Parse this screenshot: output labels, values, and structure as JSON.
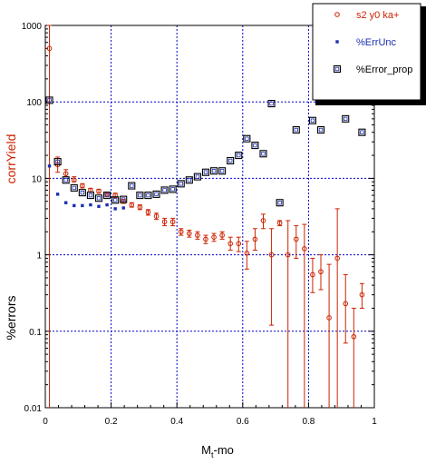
{
  "chart_data": {
    "type": "scatter",
    "xlabel": "M",
    "xlabel_sub": "t",
    "xlabel_suffix": "-mo",
    "ylabel_top": "corrYield",
    "ylabel_bottom": "%errors",
    "xlim": [
      0,
      1
    ],
    "ylim": [
      0.01,
      1000
    ],
    "y_scale": "log",
    "grid": true,
    "legend_position": "top-right",
    "x_ticks": [
      {
        "value": 0,
        "label": "0"
      },
      {
        "value": 0.2,
        "label": "0.2"
      },
      {
        "value": 0.4,
        "label": "0.4"
      },
      {
        "value": 0.6,
        "label": "0.6"
      },
      {
        "value": 0.8,
        "label": "0.8"
      },
      {
        "value": 1,
        "label": "1"
      }
    ],
    "y_ticks": [
      {
        "value": 0.01,
        "label": "0.01"
      },
      {
        "value": 0.1,
        "label": "0.1"
      },
      {
        "value": 1,
        "label": "1"
      },
      {
        "value": 10,
        "label": "10"
      },
      {
        "value": 100,
        "label": "100"
      },
      {
        "value": 1000,
        "label": "1000"
      }
    ],
    "series": [
      {
        "name": "s2 y0 ka+",
        "marker": "open-circle",
        "color": "#cc2200",
        "points": [
          {
            "x": 0.0125,
            "y": 500,
            "lo": 0.01,
            "hi": 1000
          },
          {
            "x": 0.0375,
            "y": 15,
            "lo": 12,
            "hi": 19
          },
          {
            "x": 0.0625,
            "y": 11.5,
            "lo": 10.5,
            "hi": 13
          },
          {
            "x": 0.0875,
            "y": 9.5,
            "lo": 9,
            "hi": 10.5
          },
          {
            "x": 0.1125,
            "y": 8,
            "lo": 7.5,
            "hi": 8.5
          },
          {
            "x": 0.1375,
            "y": 7,
            "lo": 6.6,
            "hi": 7.4
          },
          {
            "x": 0.1625,
            "y": 6.8,
            "lo": 6.4,
            "hi": 7.2
          },
          {
            "x": 0.1875,
            "y": 6.2,
            "lo": 5.8,
            "hi": 6.6
          },
          {
            "x": 0.2125,
            "y": 6,
            "lo": 5.6,
            "hi": 6.4
          },
          {
            "x": 0.2375,
            "y": 5,
            "lo": 4.7,
            "hi": 5.3
          },
          {
            "x": 0.2625,
            "y": 4.5,
            "lo": 4.2,
            "hi": 4.8
          },
          {
            "x": 0.2875,
            "y": 4.2,
            "lo": 3.9,
            "hi": 4.5
          },
          {
            "x": 0.3125,
            "y": 3.6,
            "lo": 3.3,
            "hi": 3.9
          },
          {
            "x": 0.3375,
            "y": 3.2,
            "lo": 2.9,
            "hi": 3.5
          },
          {
            "x": 0.3625,
            "y": 2.7,
            "lo": 2.4,
            "hi": 3.0
          },
          {
            "x": 0.3875,
            "y": 2.7,
            "lo": 2.4,
            "hi": 3.0
          },
          {
            "x": 0.4125,
            "y": 2,
            "lo": 1.8,
            "hi": 2.2
          },
          {
            "x": 0.4375,
            "y": 1.9,
            "lo": 1.7,
            "hi": 2.1
          },
          {
            "x": 0.4625,
            "y": 1.8,
            "lo": 1.6,
            "hi": 2.0
          },
          {
            "x": 0.4875,
            "y": 1.6,
            "lo": 1.4,
            "hi": 1.8
          },
          {
            "x": 0.5125,
            "y": 1.7,
            "lo": 1.5,
            "hi": 1.9
          },
          {
            "x": 0.5375,
            "y": 1.8,
            "lo": 1.6,
            "hi": 2.0
          },
          {
            "x": 0.5625,
            "y": 1.4,
            "lo": 1.15,
            "hi": 1.7
          },
          {
            "x": 0.5875,
            "y": 1.4,
            "lo": 1.1,
            "hi": 1.7
          },
          {
            "x": 0.6125,
            "y": 1.05,
            "lo": 0.65,
            "hi": 1.5
          },
          {
            "x": 0.6375,
            "y": 1.6,
            "lo": 1.15,
            "hi": 2.2
          },
          {
            "x": 0.6625,
            "y": 2.8,
            "lo": 2.2,
            "hi": 3.4
          },
          {
            "x": 0.6875,
            "y": 1.0,
            "lo": 0.12,
            "hi": 2.2
          },
          {
            "x": 0.7125,
            "y": 2.6,
            "lo": 2.4,
            "hi": 2.8
          },
          {
            "x": 0.7375,
            "y": 1.0,
            "lo": 0.01,
            "hi": 2.8
          },
          {
            "x": 0.7625,
            "y": 1.6,
            "lo": 0.9,
            "hi": 2.4
          },
          {
            "x": 0.7875,
            "y": 1.2,
            "lo": 0.01,
            "hi": 2.5
          },
          {
            "x": 0.8125,
            "y": 0.55,
            "lo": 0.32,
            "hi": 0.9
          },
          {
            "x": 0.8375,
            "y": 0.6,
            "lo": 0.35,
            "hi": 1.0
          },
          {
            "x": 0.8625,
            "y": 0.15,
            "lo": 0.01,
            "hi": 0.75
          },
          {
            "x": 0.8875,
            "y": 0.9,
            "lo": 0.01,
            "hi": 4
          },
          {
            "x": 0.9125,
            "y": 0.23,
            "lo": 0.07,
            "hi": 0.55
          },
          {
            "x": 0.9375,
            "y": 0.085,
            "lo": 0.01,
            "hi": 0.2
          },
          {
            "x": 0.9625,
            "y": 0.3,
            "lo": 0.2,
            "hi": 0.42
          }
        ]
      },
      {
        "name": "%ErrUnc",
        "marker": "filled-square",
        "color": "#1a2eb0",
        "points": [
          {
            "x": 0.0125,
            "y": 14.5
          },
          {
            "x": 0.0375,
            "y": 6.2
          },
          {
            "x": 0.0625,
            "y": 4.8
          },
          {
            "x": 0.0875,
            "y": 4.4
          },
          {
            "x": 0.1125,
            "y": 4.4
          },
          {
            "x": 0.1375,
            "y": 4.5
          },
          {
            "x": 0.1625,
            "y": 4.3
          },
          {
            "x": 0.1875,
            "y": 4.5
          },
          {
            "x": 0.2125,
            "y": 4.0
          },
          {
            "x": 0.2375,
            "y": 4.1
          }
        ]
      },
      {
        "name": "%Error_prop",
        "marker": "open-square",
        "color": "#000000",
        "points": [
          {
            "x": 0.0125,
            "y": 105
          },
          {
            "x": 0.0375,
            "y": 16.5
          },
          {
            "x": 0.0625,
            "y": 9.5
          },
          {
            "x": 0.0875,
            "y": 7.5
          },
          {
            "x": 0.1125,
            "y": 6.5
          },
          {
            "x": 0.1375,
            "y": 6.0
          },
          {
            "x": 0.1625,
            "y": 5.5
          },
          {
            "x": 0.1875,
            "y": 6.0
          },
          {
            "x": 0.2125,
            "y": 5.2
          },
          {
            "x": 0.2375,
            "y": 5.3
          },
          {
            "x": 0.2625,
            "y": 8.0
          },
          {
            "x": 0.2875,
            "y": 6.0
          },
          {
            "x": 0.3125,
            "y": 6.0
          },
          {
            "x": 0.3375,
            "y": 6.2
          },
          {
            "x": 0.3625,
            "y": 7.0
          },
          {
            "x": 0.3875,
            "y": 7.2
          },
          {
            "x": 0.4125,
            "y": 8.5
          },
          {
            "x": 0.4375,
            "y": 9.5
          },
          {
            "x": 0.4625,
            "y": 10.5
          },
          {
            "x": 0.4875,
            "y": 12
          },
          {
            "x": 0.5125,
            "y": 12.5
          },
          {
            "x": 0.5375,
            "y": 12.5
          },
          {
            "x": 0.5625,
            "y": 17
          },
          {
            "x": 0.5875,
            "y": 20
          },
          {
            "x": 0.6125,
            "y": 33
          },
          {
            "x": 0.6375,
            "y": 27
          },
          {
            "x": 0.6625,
            "y": 21
          },
          {
            "x": 0.6875,
            "y": 95
          },
          {
            "x": 0.7125,
            "y": 4.8
          },
          {
            "x": 0.7625,
            "y": 43
          },
          {
            "x": 0.8125,
            "y": 57
          },
          {
            "x": 0.8375,
            "y": 43
          },
          {
            "x": 0.8625,
            "y": 130
          },
          {
            "x": 0.9125,
            "y": 60
          },
          {
            "x": 0.9375,
            "y": 160
          },
          {
            "x": 0.9625,
            "y": 40
          }
        ]
      }
    ]
  }
}
